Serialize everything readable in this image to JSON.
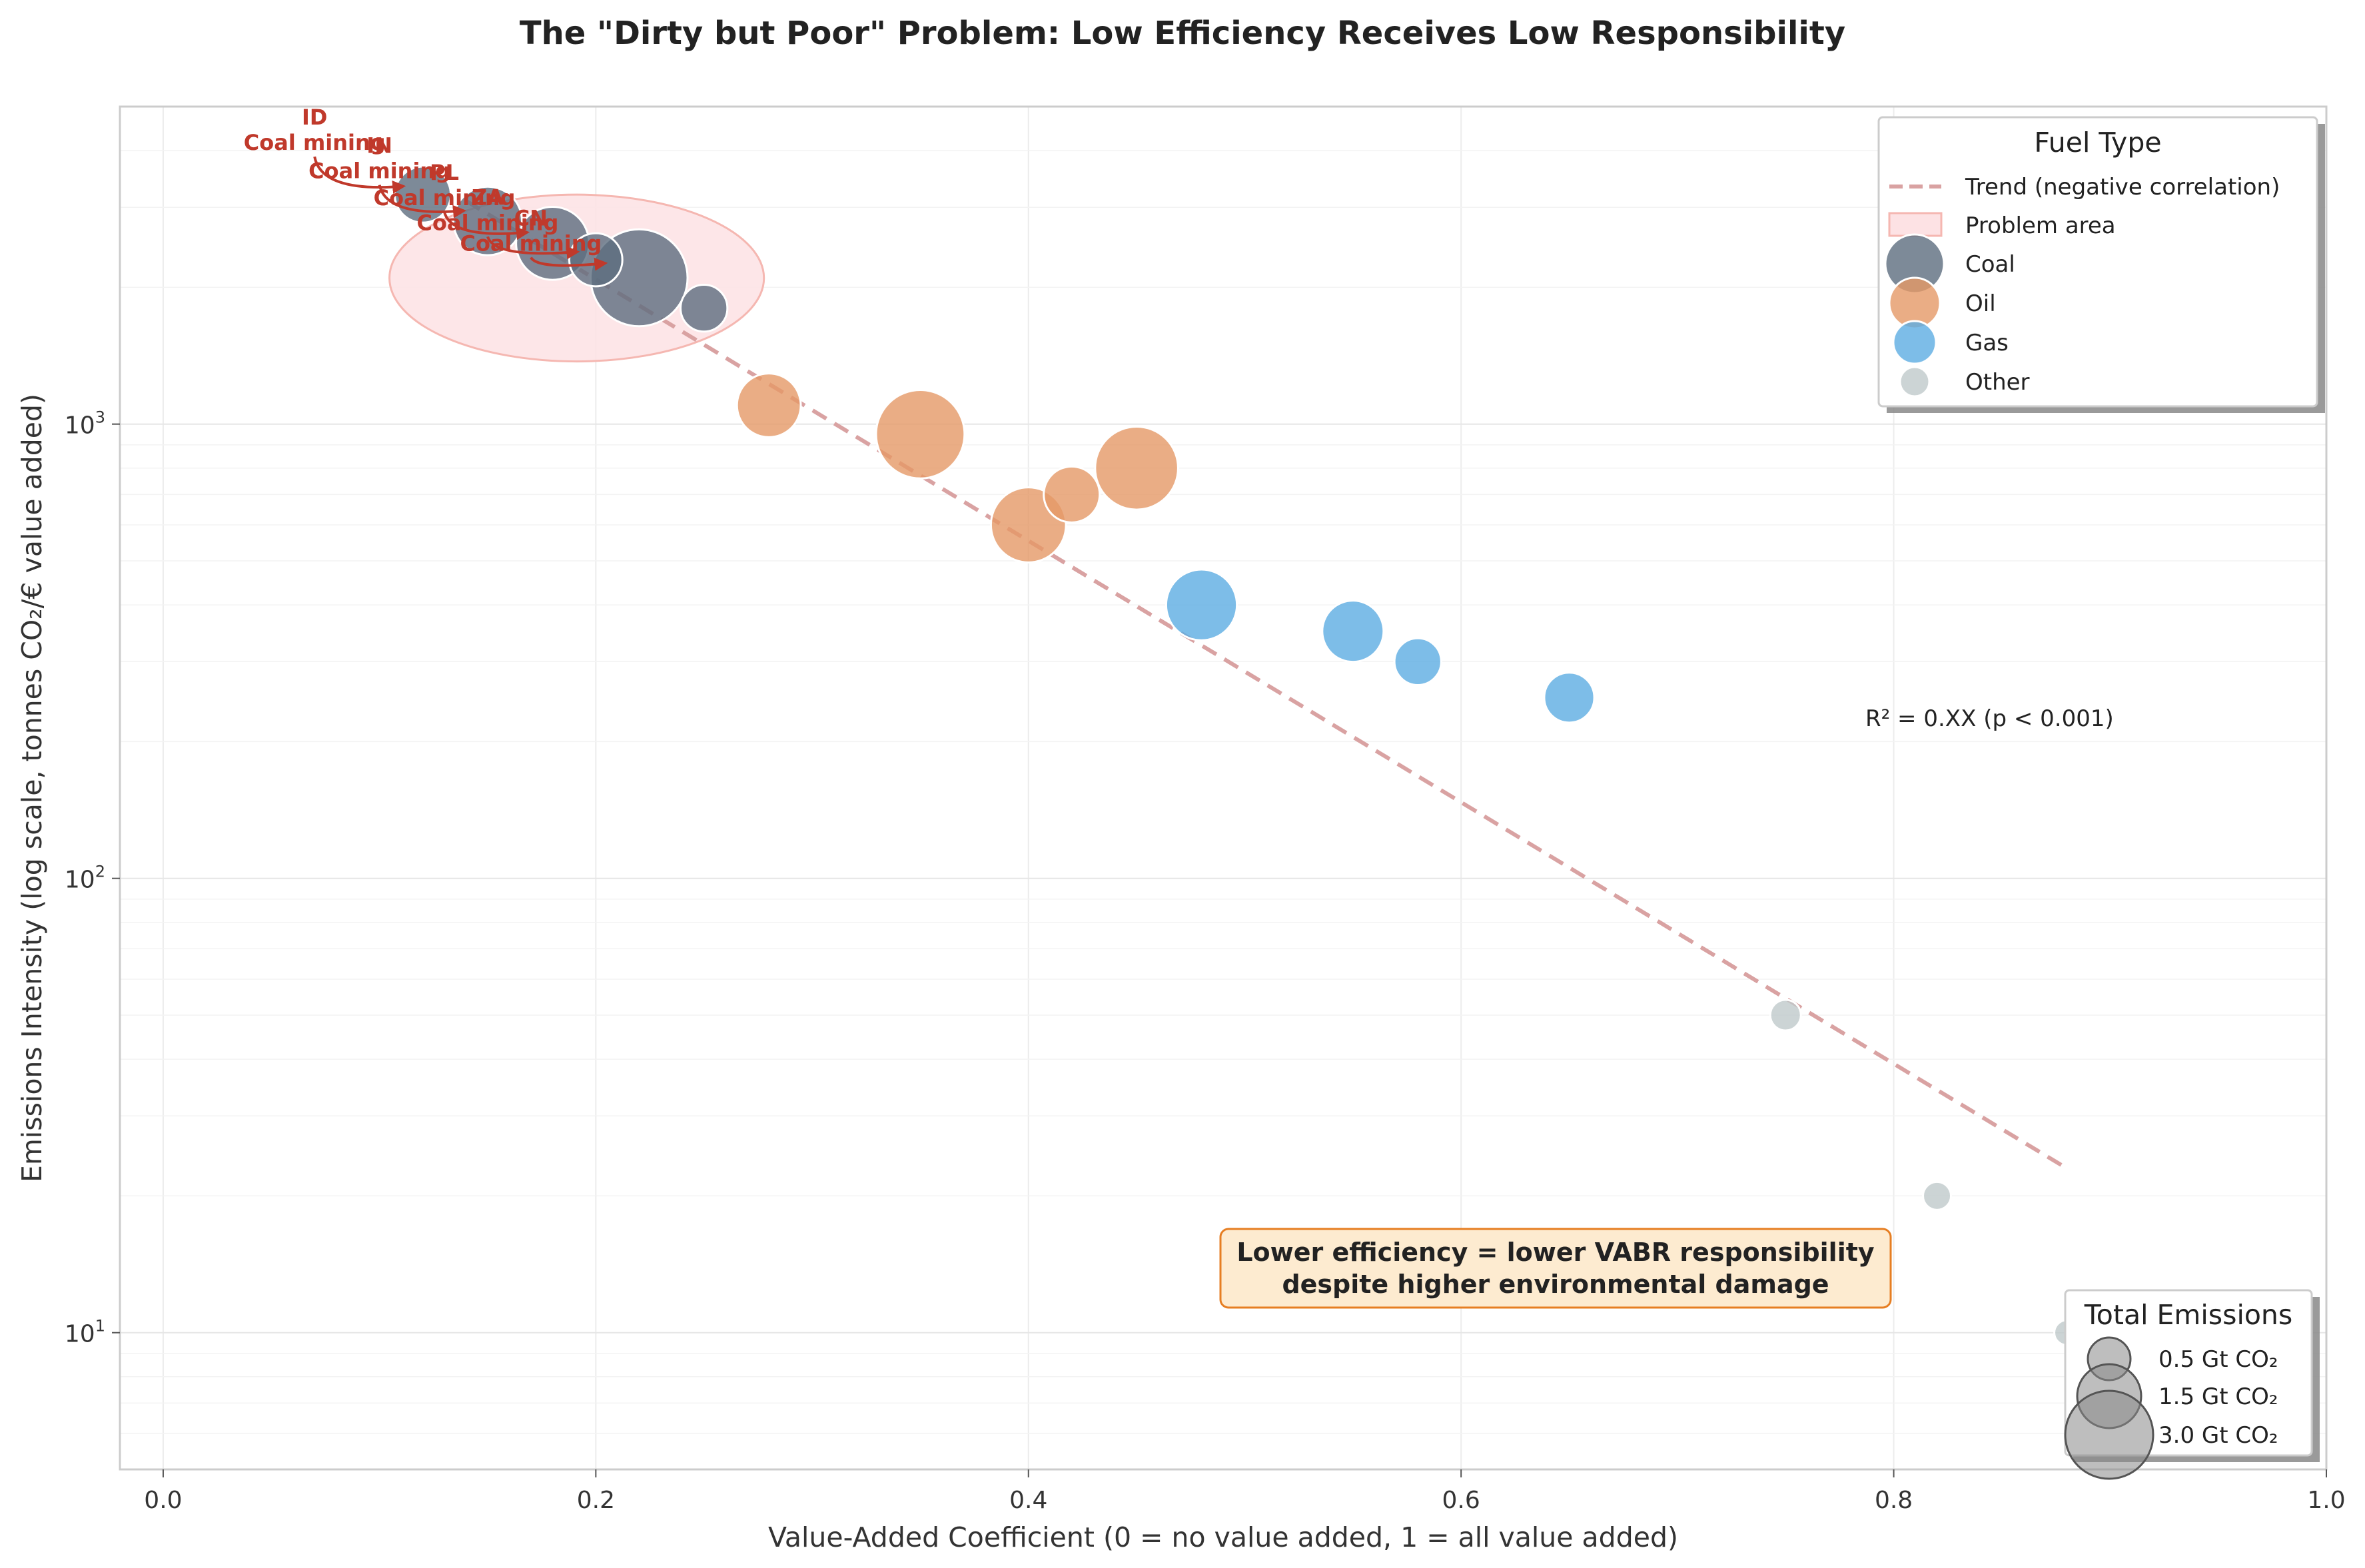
{
  "chart_data": {
    "type": "scatter",
    "title": "The \"Dirty but Poor\" Problem: Low Efficiency Receives Low Responsibility",
    "xlabel": "Value-Added Coefficient (0 = no value added, 1 = all value added)",
    "ylabel": "Emissions Intensity (log scale, tonnes CO₂/€ value added)",
    "xlim": [
      -0.02,
      1.0
    ],
    "ylim": [
      5,
      5000
    ],
    "yscale": "log",
    "grid": true,
    "x_ticks": [
      "0.0",
      "0.2",
      "0.4",
      "0.6",
      "0.8",
      "1.0"
    ],
    "y_ticks": [
      {
        "value": 10,
        "base": "10",
        "exp": "1"
      },
      {
        "value": 100,
        "base": "10",
        "exp": "2"
      },
      {
        "value": 1000,
        "base": "10",
        "exp": "3"
      }
    ],
    "series": [
      {
        "name": "Coal",
        "color": "#5d6d7e",
        "points": [
          {
            "x": 0.12,
            "y": 3200,
            "size": 1.0
          },
          {
            "x": 0.15,
            "y": 2800,
            "size": 1.5
          },
          {
            "x": 0.18,
            "y": 2500,
            "size": 1.7
          },
          {
            "x": 0.2,
            "y": 2300,
            "size": 0.9
          },
          {
            "x": 0.22,
            "y": 2100,
            "size": 3.0
          },
          {
            "x": 0.25,
            "y": 1800,
            "size": 0.7
          }
        ]
      },
      {
        "name": "Oil",
        "color": "#e59866",
        "points": [
          {
            "x": 0.28,
            "y": 1100,
            "size": 1.3
          },
          {
            "x": 0.35,
            "y": 950,
            "size": 2.5
          },
          {
            "x": 0.4,
            "y": 600,
            "size": 1.8
          },
          {
            "x": 0.42,
            "y": 700,
            "size": 1.0
          },
          {
            "x": 0.45,
            "y": 800,
            "size": 2.2
          }
        ]
      },
      {
        "name": "Gas",
        "color": "#5dade2",
        "points": [
          {
            "x": 0.48,
            "y": 400,
            "size": 1.6
          },
          {
            "x": 0.55,
            "y": 350,
            "size": 1.2
          },
          {
            "x": 0.58,
            "y": 300,
            "size": 0.7
          },
          {
            "x": 0.65,
            "y": 250,
            "size": 0.8
          }
        ]
      },
      {
        "name": "Other",
        "color": "#bfc9ca",
        "points": [
          {
            "x": 0.75,
            "y": 50,
            "size": 0.3
          },
          {
            "x": 0.82,
            "y": 20,
            "size": 0.25
          },
          {
            "x": 0.88,
            "y": 10,
            "size": 0.2
          }
        ]
      }
    ],
    "trend": {
      "label": "Trend (negative correlation)",
      "x": [
        0.14,
        0.88
      ],
      "y": [
        3100,
        23
      ]
    },
    "problem_area_label": "Problem area",
    "annotations": [
      {
        "country": "ID",
        "sector": "Coal mining",
        "text_x": 0.07,
        "text_y": 4500,
        "point_x": 0.12,
        "point_y": 3200
      },
      {
        "country": "IN",
        "sector": "Coal mining",
        "text_x": 0.1,
        "text_y": 3900,
        "point_x": 0.15,
        "point_y": 2800
      },
      {
        "country": "PL",
        "sector": "Coal mining",
        "text_x": 0.13,
        "text_y": 3400,
        "point_x": 0.18,
        "point_y": 2500
      },
      {
        "country": "ZA",
        "sector": "Coal mining",
        "text_x": 0.15,
        "text_y": 3000,
        "point_x": 0.2,
        "point_y": 2300
      },
      {
        "country": "CN",
        "sector": "Coal mining",
        "text_x": 0.17,
        "text_y": 2700,
        "point_x": 0.22,
        "point_y": 2100
      }
    ],
    "r2_text": "R² = 0.XX (p < 0.001)",
    "callout": {
      "line1": "Lower efficiency = lower VABR responsibility",
      "line2": "despite higher environmental damage"
    },
    "legend": {
      "title": "Fuel Type",
      "position": "upper right"
    },
    "size_legend": {
      "title": "Total Emissions",
      "position": "lower right",
      "items": [
        {
          "label": "0.5 Gt CO₂",
          "size": 0.5
        },
        {
          "label": "1.5 Gt CO₂",
          "size": 1.5
        },
        {
          "label": "3.0 Gt CO₂",
          "size": 3.0
        }
      ]
    }
  }
}
